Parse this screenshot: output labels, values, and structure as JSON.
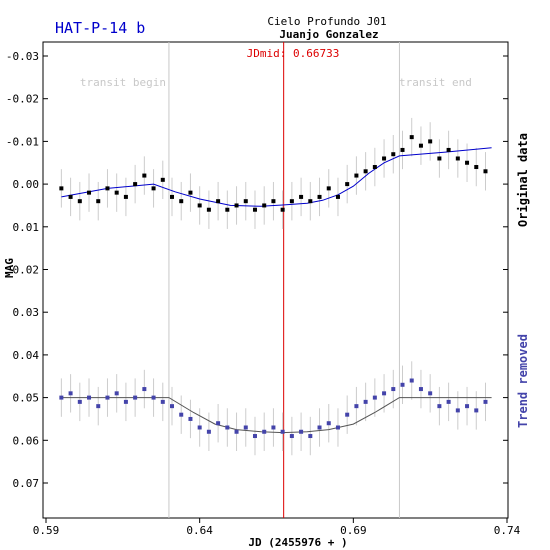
{
  "chart_data": {
    "type": "scatter",
    "title": "HAT-P-14 b",
    "observatory": "Cielo Profundo J01",
    "observer": "Juanjo Gonzalez",
    "xlabel": "JD (2455976 + )",
    "ylabel": "MAG",
    "xlim": [
      0.59,
      0.74
    ],
    "ylim": [
      -0.033,
      0.077
    ],
    "y_inverted": true,
    "x_ticks": [
      "0.59",
      "0.64",
      "0.69",
      "0.74"
    ],
    "x_tick_values": [
      0.59,
      0.64,
      0.69,
      0.74
    ],
    "y_ticks": [
      "-0.03",
      "-0.02",
      "-0.01",
      "0.00",
      "0.01",
      "0.02",
      "0.03",
      "0.04",
      "0.05",
      "0.06",
      "0.07"
    ],
    "y_tick_values": [
      -0.03,
      -0.02,
      -0.01,
      0.0,
      0.01,
      0.02,
      0.03,
      0.04,
      0.05,
      0.06,
      0.07
    ],
    "transit_begin": {
      "label": "transit begin",
      "x": 0.63
    },
    "transit_end": {
      "label": "transit end",
      "x": 0.705
    },
    "jd_mid": {
      "label": "JDmid: 0.66733",
      "x": 0.66733
    },
    "side_labels": {
      "original": "Original data",
      "detrended": "Trend removed"
    },
    "colors": {
      "title": "#0000cc",
      "original_points": "#000000",
      "original_fit": "#0000cc",
      "detrended_points": "#4444aa",
      "detrended_fit": "#555555",
      "mid_line": "#dd0000",
      "transit_lines": "#c8c8c8",
      "error_bars": "#cccccc",
      "side_label_detrended": "#4444aa"
    },
    "series": [
      {
        "name": "Original data",
        "x": [
          0.595,
          0.598,
          0.601,
          0.604,
          0.607,
          0.61,
          0.613,
          0.616,
          0.619,
          0.622,
          0.625,
          0.628,
          0.631,
          0.634,
          0.637,
          0.64,
          0.643,
          0.646,
          0.649,
          0.652,
          0.655,
          0.658,
          0.661,
          0.664,
          0.667,
          0.67,
          0.673,
          0.676,
          0.679,
          0.682,
          0.685,
          0.688,
          0.691,
          0.694,
          0.697,
          0.7,
          0.703,
          0.706,
          0.709,
          0.712,
          0.715,
          0.718,
          0.721,
          0.724,
          0.727,
          0.73,
          0.733
        ],
        "y": [
          0.001,
          0.003,
          0.004,
          0.002,
          0.004,
          0.001,
          0.002,
          0.003,
          0.0,
          -0.002,
          0.001,
          -0.001,
          0.003,
          0.004,
          0.002,
          0.005,
          0.006,
          0.004,
          0.006,
          0.005,
          0.004,
          0.006,
          0.005,
          0.004,
          0.006,
          0.004,
          0.003,
          0.004,
          0.003,
          0.001,
          0.003,
          0.0,
          -0.002,
          -0.003,
          -0.004,
          -0.006,
          -0.007,
          -0.008,
          -0.011,
          -0.009,
          -0.01,
          -0.006,
          -0.008,
          -0.006,
          -0.005,
          -0.004,
          -0.003
        ]
      },
      {
        "name": "Trend removed",
        "x": [
          0.595,
          0.598,
          0.601,
          0.604,
          0.607,
          0.61,
          0.613,
          0.616,
          0.619,
          0.622,
          0.625,
          0.628,
          0.631,
          0.634,
          0.637,
          0.64,
          0.643,
          0.646,
          0.649,
          0.652,
          0.655,
          0.658,
          0.661,
          0.664,
          0.667,
          0.67,
          0.673,
          0.676,
          0.679,
          0.682,
          0.685,
          0.688,
          0.691,
          0.694,
          0.697,
          0.7,
          0.703,
          0.706,
          0.709,
          0.712,
          0.715,
          0.718,
          0.721,
          0.724,
          0.727,
          0.73,
          0.733
        ],
        "y": [
          0.05,
          0.049,
          0.051,
          0.05,
          0.052,
          0.05,
          0.049,
          0.051,
          0.05,
          0.048,
          0.05,
          0.051,
          0.052,
          0.054,
          0.055,
          0.057,
          0.058,
          0.056,
          0.057,
          0.058,
          0.057,
          0.059,
          0.058,
          0.057,
          0.058,
          0.059,
          0.058,
          0.059,
          0.057,
          0.056,
          0.057,
          0.054,
          0.052,
          0.051,
          0.05,
          0.049,
          0.048,
          0.047,
          0.046,
          0.048,
          0.049,
          0.052,
          0.051,
          0.053,
          0.052,
          0.053,
          0.051
        ]
      }
    ],
    "fits": [
      {
        "name": "Original trend",
        "x": [
          0.595,
          0.61,
          0.625,
          0.632,
          0.64,
          0.65,
          0.66,
          0.667,
          0.675,
          0.68,
          0.685,
          0.69,
          0.695,
          0.7,
          0.705,
          0.72,
          0.735
        ],
        "y": [
          0.003,
          0.001,
          0.0,
          0.0018,
          0.0035,
          0.005,
          0.0052,
          0.0049,
          0.0045,
          0.0038,
          0.0025,
          0.0005,
          -0.0025,
          -0.005,
          -0.0066,
          -0.0075,
          -0.0085
        ]
      },
      {
        "name": "Detrended model",
        "x": [
          0.595,
          0.63,
          0.638,
          0.645,
          0.652,
          0.66,
          0.667,
          0.675,
          0.682,
          0.69,
          0.697,
          0.705,
          0.735
        ],
        "y": [
          0.05,
          0.05,
          0.0535,
          0.0562,
          0.0575,
          0.058,
          0.0582,
          0.058,
          0.0575,
          0.0562,
          0.0535,
          0.05,
          0.05
        ]
      }
    ]
  }
}
